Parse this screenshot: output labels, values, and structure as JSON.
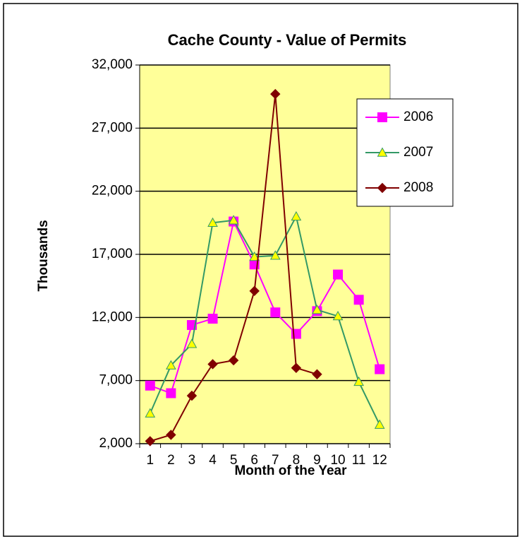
{
  "chart_data": {
    "type": "line",
    "title": "Cache County - Value of Permits",
    "x_label": "Month of the Year",
    "y_label": "Thousands",
    "categories": [
      "1",
      "2",
      "3",
      "4",
      "5",
      "6",
      "7",
      "8",
      "9",
      "10",
      "11",
      "12"
    ],
    "series": [
      {
        "name": "2006",
        "color": "#ff00ff",
        "marker": "square",
        "marker_color": "#ff00ff",
        "values": [
          6600,
          6000,
          11400,
          11900,
          19600,
          16200,
          12400,
          10700,
          12500,
          15400,
          13400,
          7900
        ]
      },
      {
        "name": "2007",
        "color": "#339966",
        "marker": "triangle",
        "marker_color": "#ffff00",
        "values": [
          4400,
          8200,
          9900,
          19500,
          19700,
          16800,
          16900,
          20000,
          12600,
          12100,
          6900,
          3500
        ]
      },
      {
        "name": "2008",
        "color": "#800000",
        "marker": "diamond",
        "marker_color": "#800000",
        "values": [
          2200,
          2700,
          5800,
          8300,
          8600,
          14100,
          29700,
          8000,
          7500,
          null,
          null,
          null
        ]
      }
    ],
    "ylim": [
      2000,
      32000
    ],
    "yticks": [
      {
        "value": 2000,
        "label": "2,000"
      },
      {
        "value": 7000,
        "label": "7,000"
      },
      {
        "value": 12000,
        "label": "12,000"
      },
      {
        "value": 17000,
        "label": "17,000"
      },
      {
        "value": 22000,
        "label": "22,000"
      },
      {
        "value": 27000,
        "label": "27,000"
      },
      {
        "value": 32000,
        "label": "32,000"
      }
    ],
    "grid": true,
    "plot_background": "#ffff99",
    "legend": "upper right"
  }
}
